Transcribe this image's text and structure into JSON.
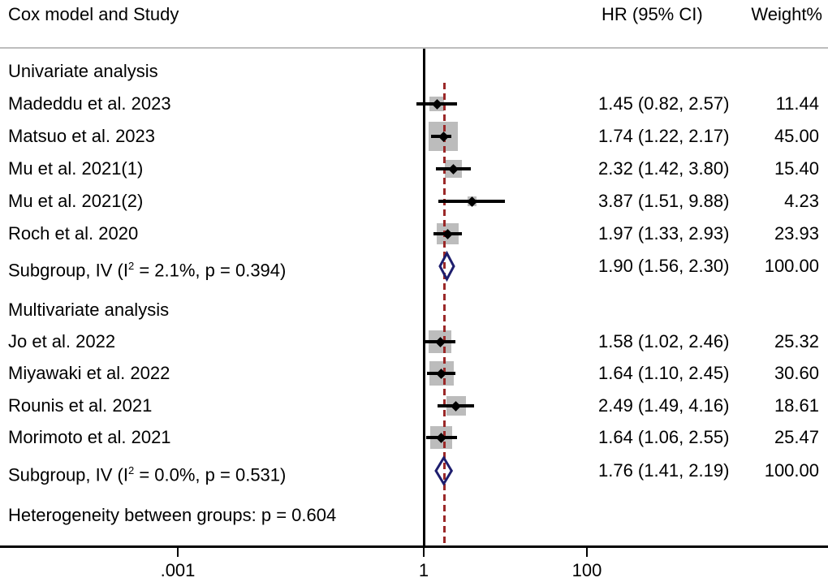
{
  "header": {
    "study_col": "Cox model and Study",
    "hr_col": "HR (95% CI)",
    "weight_col": "Weight%"
  },
  "chart_data": {
    "type": "forest",
    "effect_measure": "HR",
    "x_axis": {
      "scale": "log",
      "ticks": [
        ".001",
        "1",
        "100"
      ],
      "tick_values": [
        0.001,
        1,
        100
      ],
      "null_value": 1
    },
    "groups": [
      {
        "name": "Univariate analysis",
        "studies": [
          {
            "label": "Madeddu et al. 2023",
            "hr": 1.45,
            "lo": 0.82,
            "hi": 2.57,
            "weight": 11.44,
            "hr_ci": "1.45 (0.82, 2.57)",
            "weight_display": "11.44"
          },
          {
            "label": "Matsuo et al. 2023",
            "hr": 1.74,
            "lo": 1.22,
            "hi": 2.17,
            "weight": 45.0,
            "hr_ci": "1.74 (1.22, 2.17)",
            "weight_display": "45.00"
          },
          {
            "label": "Mu et al. 2021(1)",
            "hr": 2.32,
            "lo": 1.42,
            "hi": 3.8,
            "weight": 15.4,
            "hr_ci": "2.32 (1.42, 3.80)",
            "weight_display": "15.40"
          },
          {
            "label": "Mu et al. 2021(2)",
            "hr": 3.87,
            "lo": 1.51,
            "hi": 9.88,
            "weight": 4.23,
            "hr_ci": "3.87 (1.51, 9.88)",
            "weight_display": "4.23"
          },
          {
            "label": "Roch et al. 2020",
            "hr": 1.97,
            "lo": 1.33,
            "hi": 2.93,
            "weight": 23.93,
            "hr_ci": "1.97 (1.33, 2.93)",
            "weight_display": "23.93"
          }
        ],
        "subgroup": {
          "label_pre": "Subgroup, IV (I",
          "label_sup": "2",
          "label_post": " = 2.1%, p = 0.394)",
          "i_squared": "2.1%",
          "p_value": "0.394",
          "hr": 1.9,
          "lo": 1.56,
          "hi": 2.3,
          "hr_ci": "1.90 (1.56, 2.30)",
          "weight_display": "100.00"
        }
      },
      {
        "name": "Multivariate analysis",
        "studies": [
          {
            "label": "Jo et al. 2022",
            "hr": 1.58,
            "lo": 1.02,
            "hi": 2.46,
            "weight": 25.32,
            "hr_ci": "1.58 (1.02, 2.46)",
            "weight_display": "25.32"
          },
          {
            "label": "Miyawaki et al. 2022",
            "hr": 1.64,
            "lo": 1.1,
            "hi": 2.45,
            "weight": 30.6,
            "hr_ci": "1.64 (1.10, 2.45)",
            "weight_display": "30.60"
          },
          {
            "label": "Rounis et al. 2021",
            "hr": 2.49,
            "lo": 1.49,
            "hi": 4.16,
            "weight": 18.61,
            "hr_ci": "2.49 (1.49, 4.16)",
            "weight_display": "18.61"
          },
          {
            "label": "Morimoto et al. 2021",
            "hr": 1.64,
            "lo": 1.06,
            "hi": 2.55,
            "weight": 25.47,
            "hr_ci": "1.64 (1.06, 2.55)",
            "weight_display": "25.47"
          }
        ],
        "subgroup": {
          "label_pre": "Subgroup, IV (I",
          "label_sup": "2",
          "label_post": " = 0.0%, p = 0.531)",
          "i_squared": "0.0%",
          "p_value": "0.531",
          "hr": 1.76,
          "lo": 1.41,
          "hi": 2.19,
          "hr_ci": "1.76 (1.41, 2.19)",
          "weight_display": "100.00"
        }
      }
    ],
    "heterogeneity_note": "Heterogeneity between groups: p = 0.604",
    "colors": {
      "weight_box": "#bcbcbc",
      "ci_line": "#000000",
      "point_diamond": "#000000",
      "subgroup_diamond_outline": "#1e1e6e",
      "dashed_line": "#9b2828",
      "axis": "#000000",
      "separator": "#bdbdbd"
    }
  }
}
